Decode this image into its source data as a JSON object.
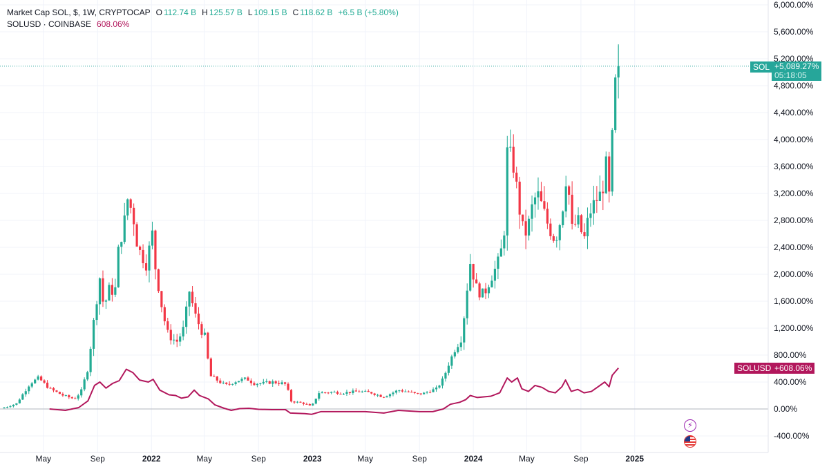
{
  "legend": {
    "main_title": "Market Cap SOL, $, 1W, CRYPTOCAP",
    "open_label": "O",
    "open": "112.74 B",
    "high_label": "H",
    "high": "125.57 B",
    "low_label": "L",
    "low": "109.15 B",
    "close_label": "C",
    "close": "118.62 B",
    "change": "+6.5 B (+5.80%)",
    "compare_title": "SOLUSD · COINBASE",
    "compare_value": "608.06%"
  },
  "badges": {
    "main_symbol": "SOL",
    "main_value": "+5,089.27%",
    "main_countdown": "05:18:05",
    "compare_symbol": "SOLUSD",
    "compare_value": "+608.06%"
  },
  "icons": [
    "lightning-icon",
    "us-flag-icon"
  ],
  "colors": {
    "up": "#22ab94",
    "down": "#f23645",
    "compare_line": "#b2175c",
    "main_badge": "#26a69a",
    "grid": "#f0f3fa",
    "axis_text": "#131722"
  },
  "chart_data": {
    "type": "candlestick",
    "y_unit": "%",
    "ylim": [
      -600,
      6000
    ],
    "y_ticks": [
      "6,000.00%",
      "5,600.00%",
      "5,200.00%",
      "4,800.00%",
      "4,400.00%",
      "4,000.00%",
      "3,600.00%",
      "3,200.00%",
      "2,800.00%",
      "2,400.00%",
      "2,000.00%",
      "1,600.00%",
      "1,200.00%",
      "800.00%",
      "400.00%",
      "0.00%",
      "-400.00%"
    ],
    "x_ticks": [
      "May",
      "Sep",
      "2022",
      "May",
      "Sep",
      "2023",
      "May",
      "Sep",
      "2024",
      "May",
      "Sep",
      "2025"
    ],
    "x_tick_dates": [
      "2021-05-01",
      "2021-09-01",
      "2022-01-01",
      "2022-05-01",
      "2022-09-01",
      "2023-01-01",
      "2023-05-01",
      "2023-09-01",
      "2024-01-01",
      "2024-05-01",
      "2024-09-01",
      "2025-01-01"
    ],
    "x_range": [
      "2021-02-01",
      "2025-04-15"
    ],
    "grid": true,
    "series": [
      {
        "name": "Market Cap SOL",
        "kind": "candles_weekly",
        "start_date": "2021-02-01",
        "close_path": [
          [
            "2021-02-01",
            20
          ],
          [
            "2021-03-01",
            80
          ],
          [
            "2021-04-01",
            380
          ],
          [
            "2021-04-20",
            460
          ],
          [
            "2021-05-15",
            300
          ],
          [
            "2021-06-15",
            200
          ],
          [
            "2021-07-10",
            150
          ],
          [
            "2021-07-25",
            250
          ],
          [
            "2021-08-10",
            600
          ],
          [
            "2021-08-25",
            1400
          ],
          [
            "2021-09-06",
            1950
          ],
          [
            "2021-09-15",
            1500
          ],
          [
            "2021-09-28",
            1800
          ],
          [
            "2021-10-10",
            1700
          ],
          [
            "2021-10-20",
            2500
          ],
          [
            "2021-10-30",
            2650
          ],
          [
            "2021-11-06",
            3150
          ],
          [
            "2021-11-20",
            2900
          ],
          [
            "2021-12-01",
            2400
          ],
          [
            "2021-12-20",
            2150
          ],
          [
            "2022-01-03",
            2600
          ],
          [
            "2022-01-10",
            2100
          ],
          [
            "2022-01-25",
            1500
          ],
          [
            "2022-02-05",
            1150
          ],
          [
            "2022-02-15",
            1050
          ],
          [
            "2022-03-01",
            1000
          ],
          [
            "2022-03-15",
            1200
          ],
          [
            "2022-03-28",
            1750
          ],
          [
            "2022-04-10",
            1400
          ],
          [
            "2022-04-25",
            1150
          ],
          [
            "2022-05-05",
            1050
          ],
          [
            "2022-05-12",
            500
          ],
          [
            "2022-06-01",
            420
          ],
          [
            "2022-06-18",
            350
          ],
          [
            "2022-07-15",
            420
          ],
          [
            "2022-08-05",
            450
          ],
          [
            "2022-08-20",
            380
          ],
          [
            "2022-09-10",
            380
          ],
          [
            "2022-10-01",
            400
          ],
          [
            "2022-10-25",
            380
          ],
          [
            "2022-11-05",
            360
          ],
          [
            "2022-11-10",
            120
          ],
          [
            "2022-12-15",
            80
          ],
          [
            "2022-12-30",
            30
          ],
          [
            "2023-01-15",
            240
          ],
          [
            "2023-02-15",
            250
          ],
          [
            "2023-03-10",
            240
          ],
          [
            "2023-04-15",
            260
          ],
          [
            "2023-05-15",
            240
          ],
          [
            "2023-06-10",
            180
          ],
          [
            "2023-06-25",
            220
          ],
          [
            "2023-07-15",
            280
          ],
          [
            "2023-08-10",
            250
          ],
          [
            "2023-08-25",
            220
          ],
          [
            "2023-09-10",
            230
          ],
          [
            "2023-09-25",
            270
          ],
          [
            "2023-10-10",
            300
          ],
          [
            "2023-10-25",
            450
          ],
          [
            "2023-11-05",
            650
          ],
          [
            "2023-11-20",
            880
          ],
          [
            "2023-12-05",
            1050
          ],
          [
            "2023-12-15",
            1600
          ],
          [
            "2023-12-24",
            2200
          ],
          [
            "2024-01-10",
            1750
          ],
          [
            "2024-01-25",
            1700
          ],
          [
            "2024-02-10",
            1950
          ],
          [
            "2024-02-25",
            2150
          ],
          [
            "2024-03-10",
            2500
          ],
          [
            "2024-03-18",
            3800
          ],
          [
            "2024-03-30",
            3700
          ],
          [
            "2024-04-10",
            3200
          ],
          [
            "2024-04-20",
            2700
          ],
          [
            "2024-05-01",
            2600
          ],
          [
            "2024-05-15",
            3050
          ],
          [
            "2024-05-25",
            3200
          ],
          [
            "2024-06-05",
            3000
          ],
          [
            "2024-06-20",
            2700
          ],
          [
            "2024-07-05",
            2500
          ],
          [
            "2024-07-20",
            2900
          ],
          [
            "2024-08-01",
            3600
          ],
          [
            "2024-08-10",
            2650
          ],
          [
            "2024-08-25",
            2800
          ],
          [
            "2024-09-08",
            2500
          ],
          [
            "2024-09-20",
            2900
          ],
          [
            "2024-10-05",
            3100
          ],
          [
            "2024-10-18",
            3200
          ],
          [
            "2024-10-28",
            3600
          ],
          [
            "2024-11-04",
            3150
          ],
          [
            "2024-11-11",
            4000
          ],
          [
            "2024-11-18",
            4800
          ],
          [
            "2024-11-25",
            5089.27
          ]
        ]
      },
      {
        "name": "SOLUSD",
        "kind": "line",
        "points": [
          [
            "2021-05-15",
            0
          ],
          [
            "2021-06-20",
            -20
          ],
          [
            "2021-07-20",
            20
          ],
          [
            "2021-08-10",
            120
          ],
          [
            "2021-08-25",
            350
          ],
          [
            "2021-09-06",
            400
          ],
          [
            "2021-09-20",
            310
          ],
          [
            "2021-10-05",
            380
          ],
          [
            "2021-10-20",
            420
          ],
          [
            "2021-11-05",
            590
          ],
          [
            "2021-11-20",
            540
          ],
          [
            "2021-12-05",
            430
          ],
          [
            "2021-12-25",
            400
          ],
          [
            "2022-01-05",
            440
          ],
          [
            "2022-01-20",
            280
          ],
          [
            "2022-02-10",
            210
          ],
          [
            "2022-02-25",
            200
          ],
          [
            "2022-03-10",
            160
          ],
          [
            "2022-03-25",
            180
          ],
          [
            "2022-04-08",
            280
          ],
          [
            "2022-04-20",
            200
          ],
          [
            "2022-05-10",
            150
          ],
          [
            "2022-05-25",
            60
          ],
          [
            "2022-06-15",
            10
          ],
          [
            "2022-07-01",
            -20
          ],
          [
            "2022-07-20",
            5
          ],
          [
            "2022-08-10",
            10
          ],
          [
            "2022-09-01",
            -5
          ],
          [
            "2022-10-01",
            -10
          ],
          [
            "2022-11-01",
            -10
          ],
          [
            "2022-11-12",
            -60
          ],
          [
            "2022-12-15",
            -70
          ],
          [
            "2022-12-30",
            -80
          ],
          [
            "2023-01-20",
            -40
          ],
          [
            "2023-03-01",
            -40
          ],
          [
            "2023-05-01",
            -40
          ],
          [
            "2023-06-12",
            -60
          ],
          [
            "2023-07-15",
            -20
          ],
          [
            "2023-09-01",
            -40
          ],
          [
            "2023-10-01",
            -40
          ],
          [
            "2023-10-25",
            0
          ],
          [
            "2023-11-10",
            70
          ],
          [
            "2023-12-01",
            100
          ],
          [
            "2023-12-15",
            140
          ],
          [
            "2023-12-25",
            200
          ],
          [
            "2024-01-10",
            170
          ],
          [
            "2024-02-10",
            190
          ],
          [
            "2024-03-01",
            240
          ],
          [
            "2024-03-18",
            460
          ],
          [
            "2024-03-28",
            400
          ],
          [
            "2024-04-10",
            460
          ],
          [
            "2024-04-20",
            300
          ],
          [
            "2024-05-05",
            260
          ],
          [
            "2024-05-20",
            350
          ],
          [
            "2024-06-05",
            320
          ],
          [
            "2024-06-20",
            260
          ],
          [
            "2024-07-05",
            240
          ],
          [
            "2024-07-20",
            330
          ],
          [
            "2024-07-28",
            430
          ],
          [
            "2024-08-10",
            260
          ],
          [
            "2024-08-25",
            290
          ],
          [
            "2024-09-08",
            240
          ],
          [
            "2024-09-25",
            260
          ],
          [
            "2024-10-10",
            330
          ],
          [
            "2024-10-25",
            400
          ],
          [
            "2024-11-04",
            330
          ],
          [
            "2024-11-11",
            500
          ],
          [
            "2024-11-25",
            608.06
          ]
        ]
      }
    ]
  }
}
